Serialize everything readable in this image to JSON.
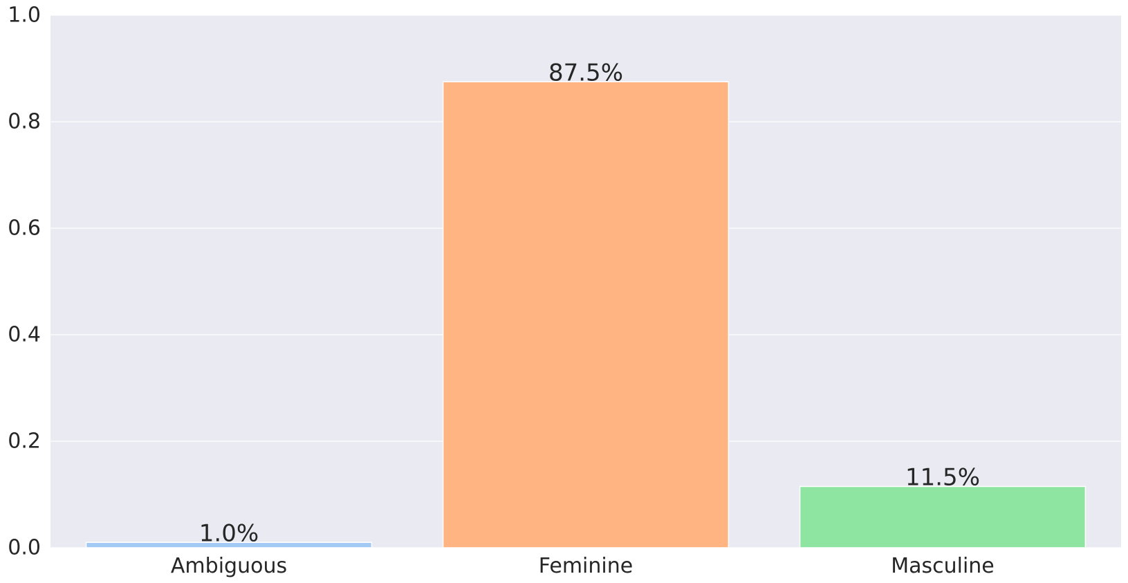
{
  "chart_data": {
    "type": "bar",
    "title": "",
    "xlabel": "",
    "ylabel": "",
    "categories": [
      "Ambiguous",
      "Feminine",
      "Masculine"
    ],
    "values": [
      0.01,
      0.875,
      0.115
    ],
    "data_labels": [
      "1.0%",
      "87.5%",
      "11.5%"
    ],
    "bar_colors": [
      "#a1c9f4",
      "#ffb482",
      "#8de5a1"
    ],
    "ylim": [
      0,
      1.0
    ],
    "yticks": [
      0.0,
      0.2,
      0.4,
      0.6,
      0.8,
      1.0
    ],
    "ytick_labels": [
      "0.0",
      "0.2",
      "0.4",
      "0.6",
      "0.8",
      "1.0"
    ],
    "grid": true,
    "legend": "none",
    "colors": {
      "plot_background": "#eaeaf2",
      "grid": "#ffffff",
      "text": "#262626"
    }
  }
}
